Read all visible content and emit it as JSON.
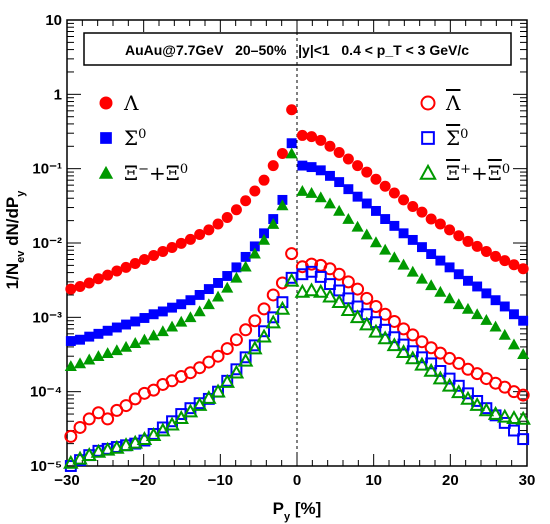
{
  "chart_data": {
    "type": "scatter",
    "xlabel": "P_y [%]",
    "ylabel": "1/N_ev dN/dP_y",
    "xlim": [
      -30,
      30
    ],
    "ylim": [
      1e-05,
      10
    ],
    "ylog": true,
    "grid": false,
    "legend_placement": "top-left and top-right",
    "annotation": "AuAu@7.7GeV   20–50%   |y|<1   0.4 < p_T < 3 GeV/c",
    "x_ticks": [
      -30,
      -20,
      -10,
      0,
      10,
      20,
      30
    ],
    "x_tick_labels": [
      "−30",
      "−20",
      "−10",
      "0",
      "10",
      "20",
      "30"
    ],
    "y_ticks": [
      1e-05,
      0.0001,
      0.001,
      0.01,
      0.1,
      1,
      10
    ],
    "y_tick_labels": [
      "10⁻⁵",
      "10⁻⁴",
      "10⁻³",
      "10⁻²",
      "10⁻¹",
      "1",
      "10"
    ],
    "x": [
      -29.5,
      -28.3,
      -27.1,
      -25.9,
      -24.7,
      -23.5,
      -22.3,
      -21.1,
      -19.9,
      -18.7,
      -17.5,
      -16.3,
      -15.1,
      -13.9,
      -12.7,
      -11.5,
      -10.3,
      -9.1,
      -7.9,
      -6.7,
      -5.5,
      -4.3,
      -3.1,
      -1.9,
      -0.7,
      0.7,
      1.9,
      3.1,
      4.3,
      5.5,
      6.7,
      7.9,
      9.1,
      10.3,
      11.5,
      12.7,
      13.9,
      15.1,
      16.3,
      17.5,
      18.7,
      19.9,
      21.1,
      22.3,
      23.5,
      24.7,
      25.9,
      27.1,
      28.3,
      29.5
    ],
    "series": [
      {
        "name": "Λ",
        "marker": "circle",
        "filled": true,
        "color": "#ff0000",
        "values": [
          0.0024,
          0.0026,
          0.0029,
          0.0033,
          0.0037,
          0.0042,
          0.0047,
          0.0053,
          0.006,
          0.0068,
          0.0077,
          0.0087,
          0.0099,
          0.0112,
          0.013,
          0.015,
          0.018,
          0.022,
          0.028,
          0.037,
          0.05,
          0.07,
          0.11,
          0.16,
          0.62,
          0.28,
          0.27,
          0.24,
          0.2,
          0.165,
          0.135,
          0.11,
          0.09,
          0.072,
          0.058,
          0.047,
          0.038,
          0.031,
          0.026,
          0.021,
          0.018,
          0.015,
          0.0125,
          0.0105,
          0.009,
          0.0077,
          0.0066,
          0.0058,
          0.0051,
          0.0045
        ]
      },
      {
        "name": "Σ⁰",
        "marker": "square",
        "filled": true,
        "color": "#0000ff",
        "values": [
          0.00048,
          0.0005,
          0.00055,
          0.0006,
          0.00066,
          0.00073,
          0.0008,
          0.00088,
          0.00098,
          0.0011,
          0.0012,
          0.00135,
          0.0015,
          0.0017,
          0.002,
          0.0024,
          0.0029,
          0.0036,
          0.0047,
          0.0065,
          0.009,
          0.0135,
          0.021,
          0.038,
          0.22,
          0.11,
          0.105,
          0.095,
          0.08,
          0.066,
          0.053,
          0.042,
          0.034,
          0.027,
          0.021,
          0.017,
          0.0135,
          0.011,
          0.0088,
          0.0071,
          0.0058,
          0.0047,
          0.0038,
          0.0031,
          0.0026,
          0.0021,
          0.0017,
          0.0014,
          0.0011,
          0.0009
        ]
      },
      {
        "name": "Ξ⁻+Ξ⁰",
        "marker": "triangle",
        "filled": true,
        "color": "#009900",
        "values": [
          0.00022,
          0.00024,
          0.00027,
          0.0003,
          0.00033,
          0.00036,
          0.0004,
          0.00045,
          0.0005,
          0.00057,
          0.00065,
          0.00075,
          0.00087,
          0.001,
          0.0012,
          0.0015,
          0.0019,
          0.0025,
          0.0034,
          0.0048,
          0.0072,
          0.011,
          0.018,
          0.032,
          0.16,
          0.05,
          0.047,
          0.041,
          0.034,
          0.027,
          0.021,
          0.0165,
          0.013,
          0.0102,
          0.0081,
          0.0064,
          0.0051,
          0.0041,
          0.0033,
          0.0027,
          0.0022,
          0.0018,
          0.0015,
          0.0013,
          0.0011,
          0.00092,
          0.00075,
          0.00058,
          0.00043,
          0.00032
        ]
      },
      {
        "name": "Λ̄",
        "marker": "circle",
        "filled": false,
        "color": "#ff0000",
        "values": [
          2.5e-05,
          3.3e-05,
          4.3e-05,
          5.2e-05,
          4.3e-05,
          5.6e-05,
          6.5e-05,
          8e-05,
          9.5e-05,
          0.000105,
          0.000125,
          0.00014,
          0.00016,
          0.00018,
          0.00021,
          0.00025,
          0.0003,
          0.00038,
          0.0005,
          0.00068,
          0.0009,
          0.0013,
          0.002,
          0.0029,
          0.0072,
          0.0048,
          0.0052,
          0.005,
          0.0045,
          0.0038,
          0.003,
          0.0024,
          0.0018,
          0.0014,
          0.0011,
          0.00088,
          0.0007,
          0.00058,
          0.00047,
          0.00039,
          0.00033,
          0.00028,
          0.00024,
          0.0002,
          0.000175,
          0.00015,
          0.00013,
          0.000115,
          0.0001,
          9e-05
        ]
      },
      {
        "name": "Σ̄⁰",
        "marker": "square",
        "filled": false,
        "color": "#0000ff",
        "values": [
          1e-05,
          1.2e-05,
          1.4e-05,
          1.6e-05,
          1.7e-05,
          1.8e-05,
          1.9e-05,
          2e-05,
          2.2e-05,
          2.7e-05,
          3.3e-05,
          4e-05,
          5e-05,
          6e-05,
          7e-05,
          8e-05,
          0.0001,
          0.00014,
          0.0002,
          0.00029,
          0.00042,
          0.00065,
          0.001,
          0.0016,
          0.0034,
          0.0038,
          0.0041,
          0.0035,
          0.0028,
          0.0023,
          0.0018,
          0.0014,
          0.0011,
          0.00086,
          0.00068,
          0.00054,
          0.00043,
          0.00035,
          0.00029,
          0.00024,
          0.00019,
          0.00015,
          0.00012,
          9.5e-05,
          7.5e-05,
          6e-05,
          4.8e-05,
          3.8e-05,
          3e-05,
          2.3e-05
        ]
      },
      {
        "name": "Ξ̄⁺+Ξ̄⁰",
        "marker": "triangle",
        "filled": false,
        "color": "#009900",
        "values": [
          1.1e-05,
          1.25e-05,
          1.4e-05,
          1.55e-05,
          1.65e-05,
          1.75e-05,
          1.9e-05,
          2.05e-05,
          2.3e-05,
          2.6e-05,
          3e-05,
          3.6e-05,
          4.4e-05,
          5.4e-05,
          6.6e-05,
          8.2e-05,
          0.0001,
          0.000135,
          0.00018,
          0.00026,
          0.00038,
          0.00055,
          0.00085,
          0.0013,
          0.0031,
          0.0022,
          0.0023,
          0.0022,
          0.0019,
          0.0016,
          0.00125,
          0.001,
          0.0008,
          0.00064,
          0.00052,
          0.00042,
          0.00034,
          0.00028,
          0.00023,
          0.00019,
          0.00015,
          0.00012,
          9.8e-05,
          8e-05,
          6.6e-05,
          5.6e-05,
          5e-05,
          4.6e-05,
          4.4e-05,
          4.3e-05
        ]
      }
    ]
  }
}
